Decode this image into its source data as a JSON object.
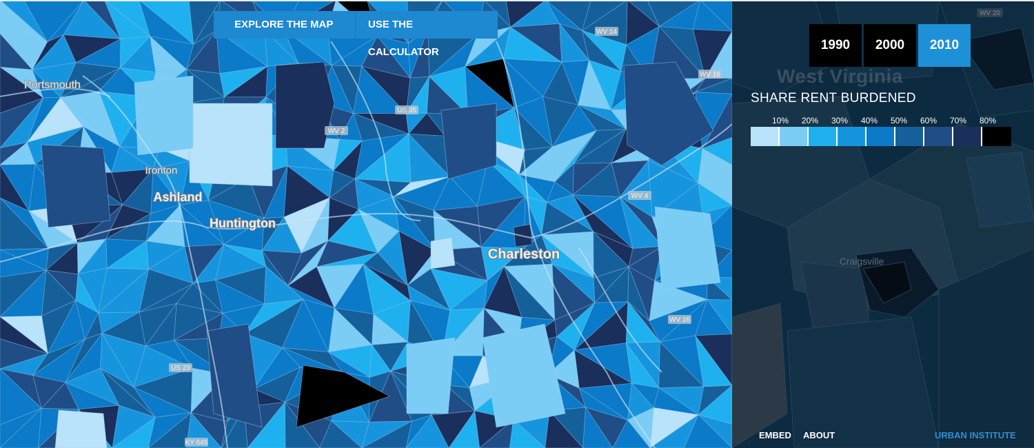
{
  "nav": {
    "explore_label": "EXPLORE THE MAP",
    "calculator_label": "USE THE CALCULATOR"
  },
  "years": [
    {
      "label": "1990",
      "active": false
    },
    {
      "label": "2000",
      "active": false
    },
    {
      "label": "2010",
      "active": true
    }
  ],
  "legend": {
    "title": "SHARE RENT BURDENED",
    "ticks": [
      "10%",
      "20%",
      "30%",
      "40%",
      "50%",
      "60%",
      "70%",
      "80%"
    ],
    "colors": [
      "#b9e2fb",
      "#7ccdf6",
      "#1fb1ef",
      "#1695de",
      "#0a7ac9",
      "#15609b",
      "#214d86",
      "#1a2f5c",
      "#000000"
    ]
  },
  "map": {
    "cities": [
      "Portsmouth",
      "Ironton",
      "Ashland",
      "Huntington",
      "Charleston"
    ],
    "roads": [
      "WV 14",
      "WV 16",
      "US 35",
      "WV 2",
      "WV 4",
      "WV 16",
      "US 23",
      "KY 645"
    ]
  },
  "panel_map": {
    "state_label": "West Virginia",
    "town_label": "Craigsville",
    "road_label": "WV 20"
  },
  "footer": {
    "embed_label": "EMBED",
    "about_label": "ABOUT",
    "brand": "URBAN INSTITUTE"
  }
}
